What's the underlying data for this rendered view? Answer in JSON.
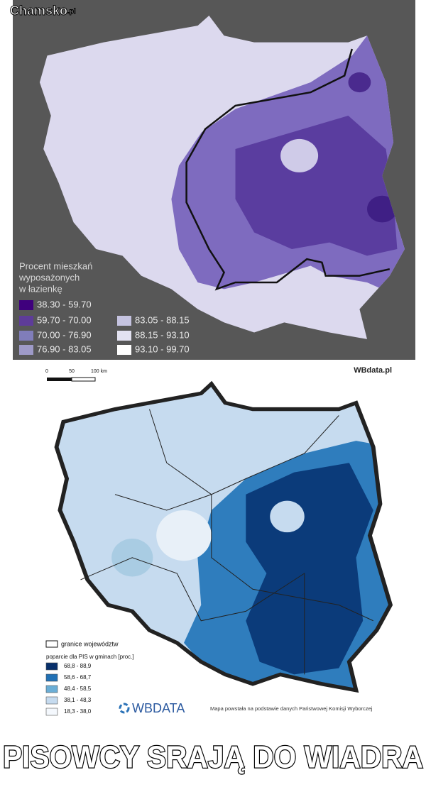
{
  "watermark": {
    "name": "Chamsko",
    "suffix": ".pl"
  },
  "map_top": {
    "legend_title": [
      "Procent mieszkań",
      "wyposażonych",
      "w łazienkę"
    ],
    "legend": [
      {
        "label": "38.30 - 59.70",
        "color": "#3f007d"
      },
      {
        "label": "59.70 - 70.00",
        "color": "#5e3c99"
      },
      {
        "label": "70.00 - 76.90",
        "color": "#807dba"
      },
      {
        "label": "76.90 - 83.05",
        "color": "#9e9ac8"
      },
      {
        "label": "83.05 - 88.15",
        "color": "#c5c3e0"
      },
      {
        "label": "88.15 - 93.10",
        "color": "#e3e2f1"
      },
      {
        "label": "93.10 - 99.70",
        "color": "#ffffff"
      }
    ]
  },
  "map_bottom": {
    "scale_labels": [
      "0",
      "50",
      "100 km"
    ],
    "source_logo": "WBdata.pl",
    "boundary_legend": "granice województw",
    "legend_title": "poparcie dla PIS w gminach [proc.]",
    "legend": [
      {
        "label": "68,8 - 88,9",
        "color": "#08306b"
      },
      {
        "label": "58,6 - 68,7",
        "color": "#2171b5"
      },
      {
        "label": "48,4 - 58,5",
        "color": "#6baed6"
      },
      {
        "label": "38,1 - 48,3",
        "color": "#c6dbef"
      },
      {
        "label": "18,3 - 38,0",
        "color": "#f4f8fd"
      }
    ],
    "brand": "WBDATA",
    "note": "Mapa powstała na podstawie danych Państwowej Komisji Wyborczej"
  },
  "caption": "PISOWCY SRAJĄ DO WIADRA"
}
